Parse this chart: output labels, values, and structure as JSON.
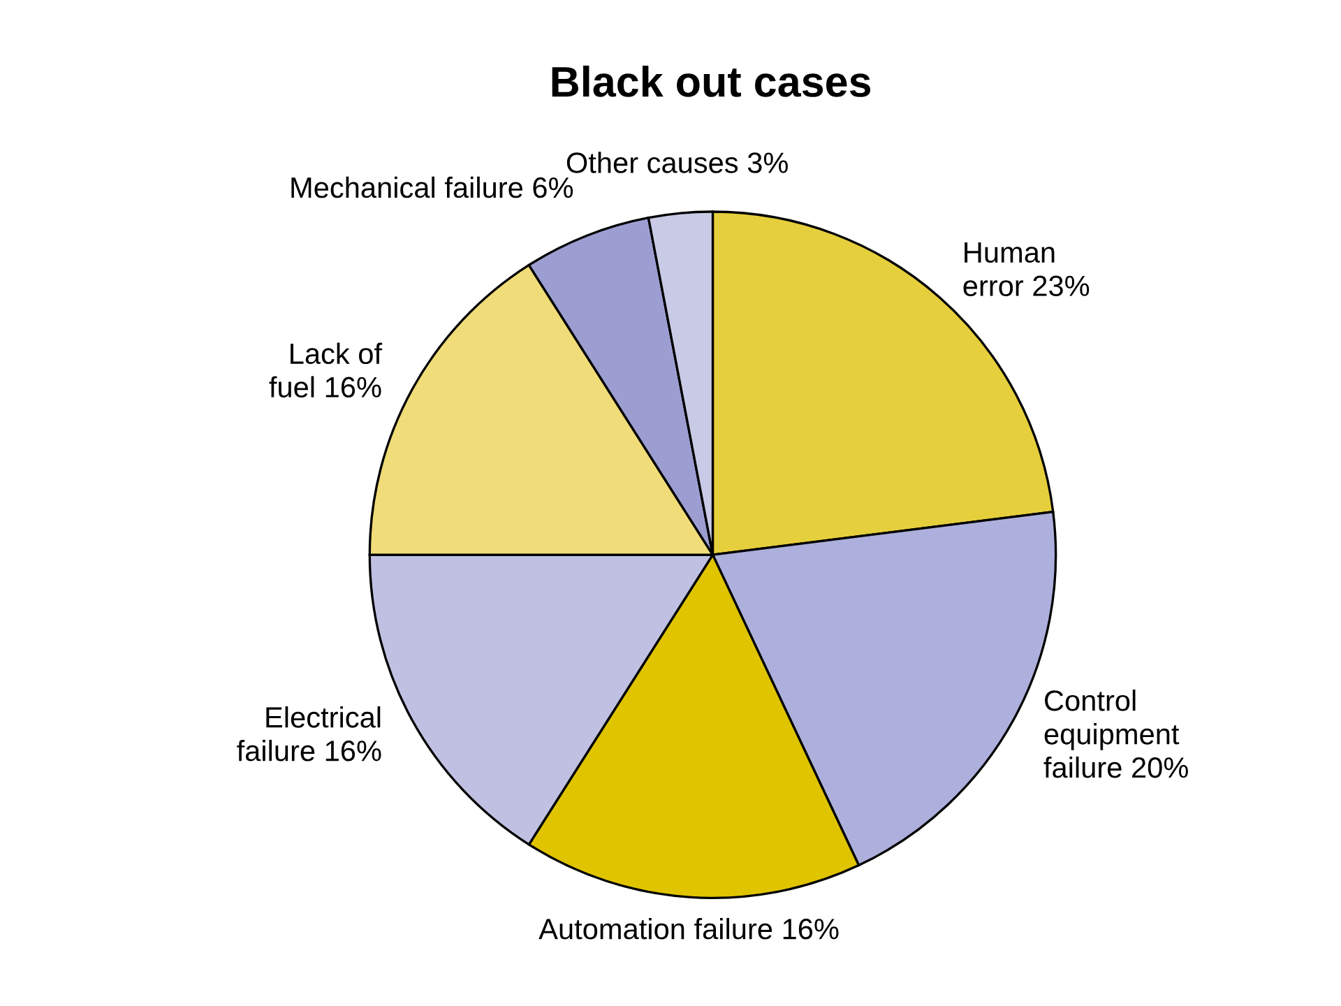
{
  "chart_data": {
    "type": "pie",
    "title": "Black out cases",
    "categories": [
      "Human\nerror 23%",
      "Control\nequipment\nfailure 20%",
      "Automation failure 16%",
      "Electrical\nfailure 16%",
      "Lack of\nfuel 16%",
      "Mechanical failure 6%",
      "Other causes 3%"
    ],
    "values": [
      23,
      20,
      16,
      16,
      16,
      6,
      3
    ],
    "colors": [
      "#e6cf3c",
      "#adb0dc",
      "#e0c400",
      "#c0c1e2",
      "#f0dc78",
      "#9c9ed2",
      "#c9cae6"
    ]
  }
}
